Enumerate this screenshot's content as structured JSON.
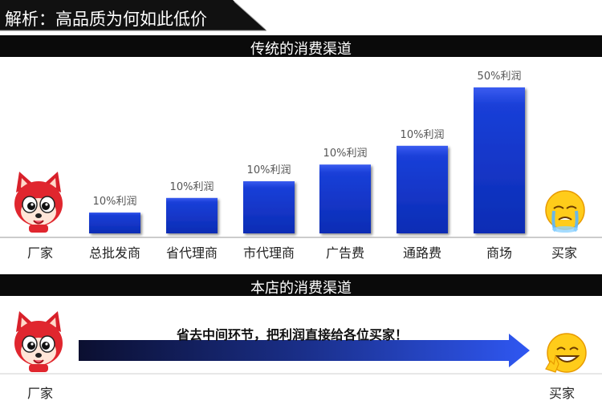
{
  "header": {
    "title": "解析：高品质为何如此低价"
  },
  "sections": {
    "traditional": "传统的消费渠道",
    "store": "本店的消费渠道"
  },
  "chart_data": {
    "type": "bar",
    "title": "传统的消费渠道",
    "categories": [
      "总批发商",
      "省代理商",
      "市代理商",
      "广告费",
      "通路费",
      "商场"
    ],
    "values": [
      10,
      10,
      10,
      10,
      10,
      50
    ],
    "data_labels": [
      "10%利润",
      "10%利润",
      "10%利润",
      "10%利润",
      "10%利润",
      "50%利润"
    ],
    "bar_heights_relative": [
      1,
      1.7,
      2.5,
      3.3,
      4.2,
      7.0
    ],
    "endpoints": {
      "start": "厂家",
      "end": "买家"
    },
    "bar_color": "#1030c8"
  },
  "direct": {
    "arrow_text": "省去中间环节，把利润直接给各位买家！",
    "start": "厂家",
    "end": "买家"
  }
}
